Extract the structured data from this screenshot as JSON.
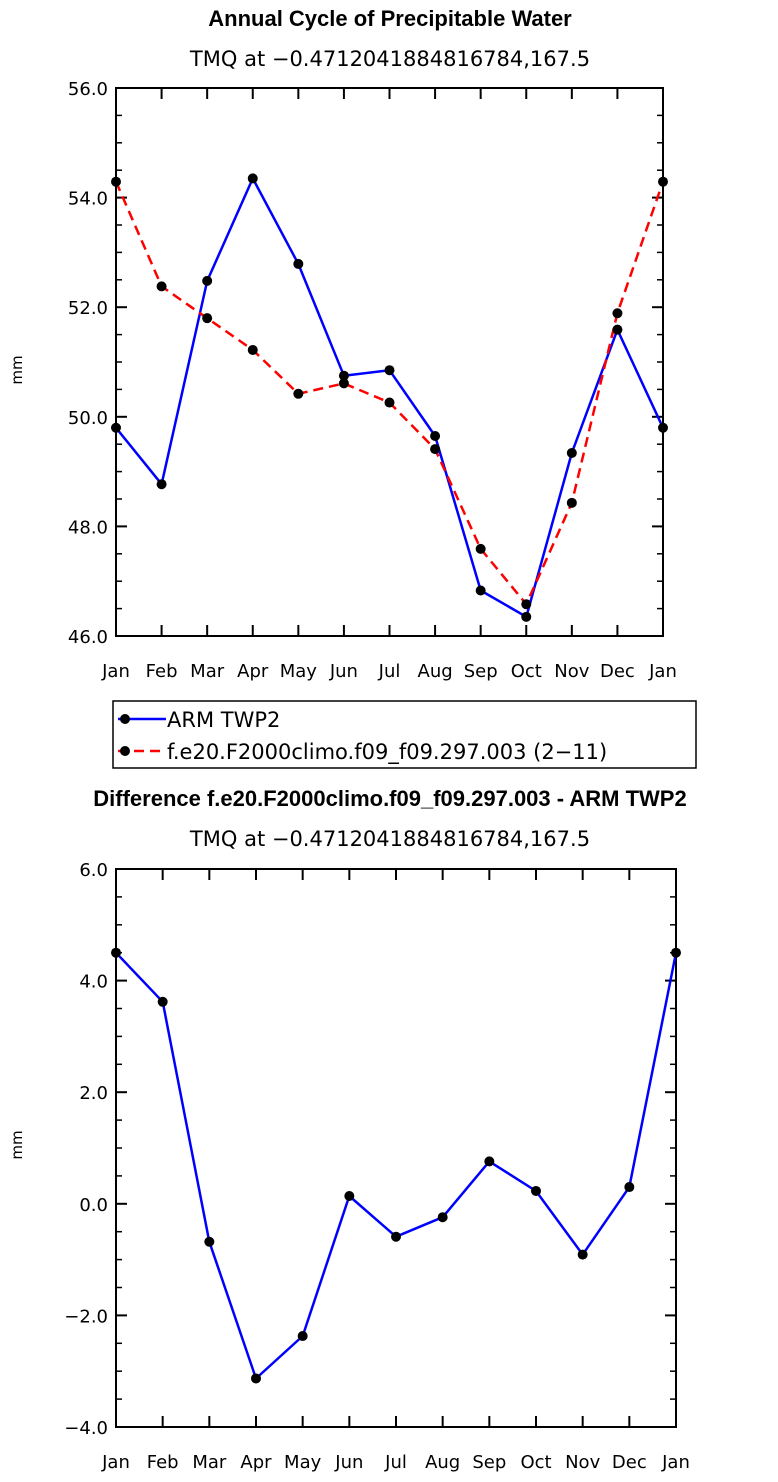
{
  "chart_data": [
    {
      "type": "line",
      "title": "Annual Cycle of Precipitable Water",
      "subtitle": "TMQ at −0.4712041884816784,167.5",
      "xlabel": "",
      "ylabel": "mm",
      "categories": [
        "Jan",
        "Feb",
        "Mar",
        "Apr",
        "May",
        "Jun",
        "Jul",
        "Aug",
        "Sep",
        "Oct",
        "Nov",
        "Dec",
        "Jan"
      ],
      "ylim": [
        46,
        56
      ],
      "yticks": [
        46,
        48,
        50,
        52,
        54,
        56
      ],
      "ytick_labels": [
        "46.0",
        "48.0",
        "50.0",
        "52.0",
        "54.0",
        "56.0"
      ],
      "legend_position": "bottom",
      "series": [
        {
          "name": "ARM TWP2",
          "color": "#0000ff",
          "dash": "solid",
          "values": [
            49.8,
            48.77,
            52.48,
            54.35,
            52.79,
            50.75,
            50.85,
            49.65,
            46.83,
            46.35,
            49.34,
            51.59,
            49.8
          ]
        },
        {
          "name": "f.e20.F2000climo.f09_f09.297.003 (2−11)",
          "color": "#ff0000",
          "dash": "dashed",
          "values": [
            54.29,
            52.38,
            51.8,
            51.22,
            50.42,
            50.61,
            50.26,
            49.41,
            47.59,
            46.58,
            48.43,
            51.89,
            54.29
          ]
        }
      ]
    },
    {
      "type": "line",
      "title": "Difference f.e20.F2000climo.f09_f09.297.003 - ARM TWP2",
      "subtitle": "TMQ at −0.4712041884816784,167.5",
      "xlabel": "",
      "ylabel": "mm",
      "categories": [
        "Jan",
        "Feb",
        "Mar",
        "Apr",
        "May",
        "Jun",
        "Jul",
        "Aug",
        "Sep",
        "Oct",
        "Nov",
        "Dec",
        "Jan"
      ],
      "ylim": [
        -4,
        6
      ],
      "yticks": [
        -4,
        -2,
        0,
        2,
        4,
        6
      ],
      "ytick_labels": [
        "−4.0",
        "−2.0",
        "0.0",
        "2.0",
        "4.0",
        "6.0"
      ],
      "series": [
        {
          "name": "Difference",
          "color": "#0000ff",
          "dash": "solid",
          "values": [
            4.5,
            3.62,
            -0.68,
            -3.13,
            -2.37,
            0.14,
            -0.59,
            -0.24,
            0.76,
            0.23,
            -0.91,
            0.3,
            4.5
          ]
        }
      ]
    }
  ]
}
